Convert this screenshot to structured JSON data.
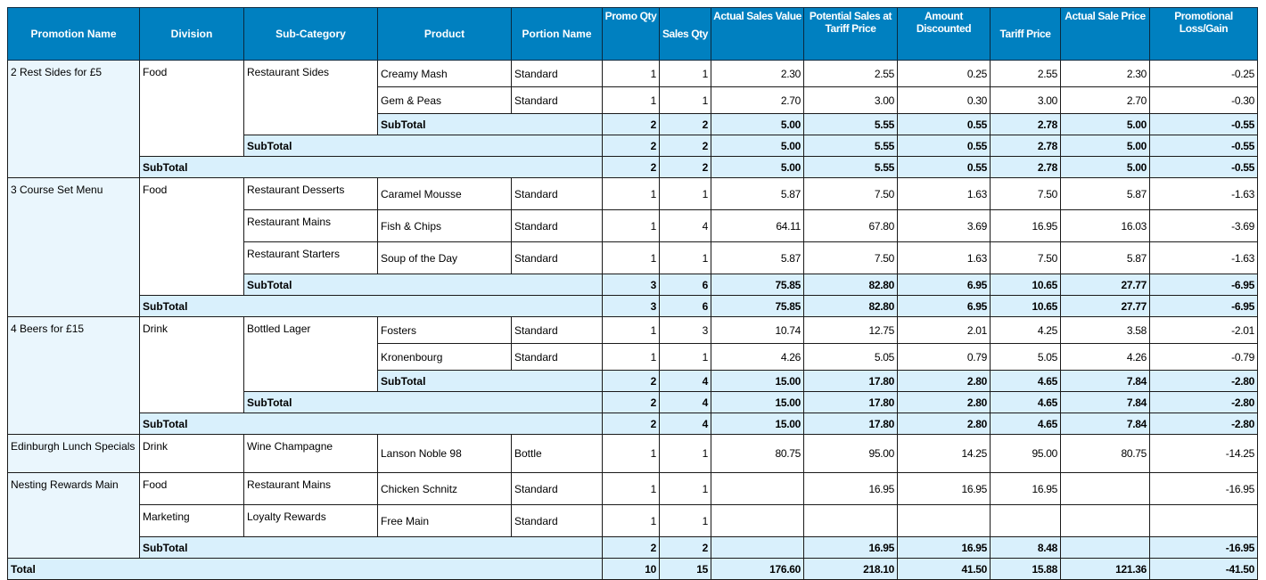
{
  "headers": [
    "Promotion Name",
    "Division",
    "Sub-Category",
    "Product",
    "Portion Name",
    "Promo Qty",
    "Sales Qty",
    "Actual Sales Value",
    "Potential Sales at Tariff Price",
    "Amount Discounted",
    "Tariff Price",
    "Actual Sale Price",
    "Promotional Loss/Gain"
  ],
  "subtotal_label": "SubTotal",
  "total_label": "Total",
  "promotions": [
    {
      "name": "2 Rest Sides for £5",
      "divisions": [
        {
          "name": "Food",
          "subcategories": [
            {
              "name": "Restaurant Sides",
              "products": [
                {
                  "name": "Creamy Mash",
                  "portion": "Standard",
                  "values": [
                    "1",
                    "1",
                    "2.30",
                    "2.55",
                    "0.25",
                    "2.55",
                    "2.30",
                    "-0.25"
                  ]
                },
                {
                  "name": "Gem & Peas",
                  "portion": "Standard",
                  "values": [
                    "1",
                    "1",
                    "2.70",
                    "3.00",
                    "0.30",
                    "3.00",
                    "2.70",
                    "-0.30"
                  ]
                }
              ],
              "subtotal": [
                "2",
                "2",
                "5.00",
                "5.55",
                "0.55",
                "2.78",
                "5.00",
                "-0.55"
              ]
            }
          ],
          "subtotal": [
            "2",
            "2",
            "5.00",
            "5.55",
            "0.55",
            "2.78",
            "5.00",
            "-0.55"
          ]
        }
      ],
      "subtotal": [
        "2",
        "2",
        "5.00",
        "5.55",
        "0.55",
        "2.78",
        "5.00",
        "-0.55"
      ]
    },
    {
      "name": "3 Course Set Menu",
      "divisions": [
        {
          "name": "Food",
          "subcategories": [
            {
              "name": "Restaurant Desserts",
              "products": [
                {
                  "name": "Caramel Mousse",
                  "portion": "Standard",
                  "values": [
                    "1",
                    "1",
                    "5.87",
                    "7.50",
                    "1.63",
                    "7.50",
                    "5.87",
                    "-1.63"
                  ]
                }
              ]
            },
            {
              "name": "Restaurant Mains",
              "products": [
                {
                  "name": "Fish & Chips",
                  "portion": "Standard",
                  "values": [
                    "1",
                    "4",
                    "64.11",
                    "67.80",
                    "3.69",
                    "16.95",
                    "16.03",
                    "-3.69"
                  ]
                }
              ]
            },
            {
              "name": "Restaurant Starters",
              "products": [
                {
                  "name": "Soup of the Day",
                  "portion": "Standard",
                  "values": [
                    "1",
                    "1",
                    "5.87",
                    "7.50",
                    "1.63",
                    "7.50",
                    "5.87",
                    "-1.63"
                  ]
                }
              ]
            }
          ],
          "subtotal": [
            "3",
            "6",
            "75.85",
            "82.80",
            "6.95",
            "10.65",
            "27.77",
            "-6.95"
          ]
        }
      ],
      "subtotal": [
        "3",
        "6",
        "75.85",
        "82.80",
        "6.95",
        "10.65",
        "27.77",
        "-6.95"
      ]
    },
    {
      "name": "4 Beers for £15",
      "divisions": [
        {
          "name": "Drink",
          "subcategories": [
            {
              "name": "Bottled Lager",
              "products": [
                {
                  "name": "Fosters",
                  "portion": "Standard",
                  "values": [
                    "1",
                    "3",
                    "10.74",
                    "12.75",
                    "2.01",
                    "4.25",
                    "3.58",
                    "-2.01"
                  ]
                },
                {
                  "name": "Kronenbourg",
                  "portion": "Standard",
                  "values": [
                    "1",
                    "1",
                    "4.26",
                    "5.05",
                    "0.79",
                    "5.05",
                    "4.26",
                    "-0.79"
                  ]
                }
              ],
              "subtotal": [
                "2",
                "4",
                "15.00",
                "17.80",
                "2.80",
                "4.65",
                "7.84",
                "-2.80"
              ]
            }
          ],
          "subtotal": [
            "2",
            "4",
            "15.00",
            "17.80",
            "2.80",
            "4.65",
            "7.84",
            "-2.80"
          ]
        }
      ],
      "subtotal": [
        "2",
        "4",
        "15.00",
        "17.80",
        "2.80",
        "4.65",
        "7.84",
        "-2.80"
      ]
    },
    {
      "name": "Edinburgh Lunch Specials",
      "tall": true,
      "divisions": [
        {
          "name": "Drink",
          "subcategories": [
            {
              "name": "Wine Champagne",
              "products": [
                {
                  "name": "Lanson Noble 98",
                  "portion": "Bottle",
                  "values": [
                    "1",
                    "1",
                    "80.75",
                    "95.00",
                    "14.25",
                    "95.00",
                    "80.75",
                    "-14.25"
                  ]
                }
              ]
            }
          ]
        }
      ]
    },
    {
      "name": "Nesting Rewards Main",
      "divisions": [
        {
          "name": "Food",
          "subcategories": [
            {
              "name": "Restaurant Mains",
              "products": [
                {
                  "name": "Chicken Schnitz",
                  "portion": "Standard",
                  "values": [
                    "1",
                    "1",
                    "",
                    "16.95",
                    "16.95",
                    "16.95",
                    "",
                    "-16.95"
                  ]
                }
              ]
            }
          ]
        },
        {
          "name": "Marketing",
          "subcategories": [
            {
              "name": "Loyalty Rewards",
              "products": [
                {
                  "name": "Free Main",
                  "portion": "Standard",
                  "values": [
                    "1",
                    "1",
                    "",
                    "",
                    "",
                    "",
                    "",
                    ""
                  ]
                }
              ]
            }
          ]
        }
      ],
      "subtotal": [
        "2",
        "2",
        "",
        "16.95",
        "16.95",
        "8.48",
        "",
        "-16.95"
      ]
    }
  ],
  "total": [
    "10",
    "15",
    "176.60",
    "218.10",
    "41.50",
    "15.88",
    "121.36",
    "-41.50"
  ]
}
